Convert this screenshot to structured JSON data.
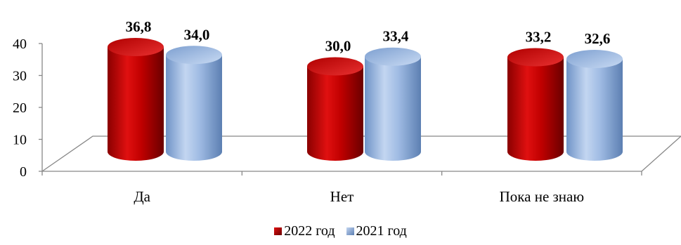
{
  "chart_data": {
    "type": "bar",
    "title": "",
    "xlabel": "",
    "ylabel": "",
    "ylim": [
      0,
      40
    ],
    "yticks": [
      0,
      10,
      20,
      30,
      40
    ],
    "categories": [
      "Да",
      "Нет",
      "Пока не знаю"
    ],
    "series": [
      {
        "name": "2022 год",
        "values": [
          36.8,
          30.0,
          33.2
        ],
        "labels": [
          "36,8",
          "30,0",
          "33,2"
        ],
        "color": "#c00000"
      },
      {
        "name": "2021 год",
        "values": [
          34.0,
          33.4,
          32.6
        ],
        "labels": [
          "34,0",
          "33,4",
          "32,6"
        ],
        "color": "#8fb0de"
      }
    ],
    "legend_position": "bottom",
    "grid": false
  }
}
